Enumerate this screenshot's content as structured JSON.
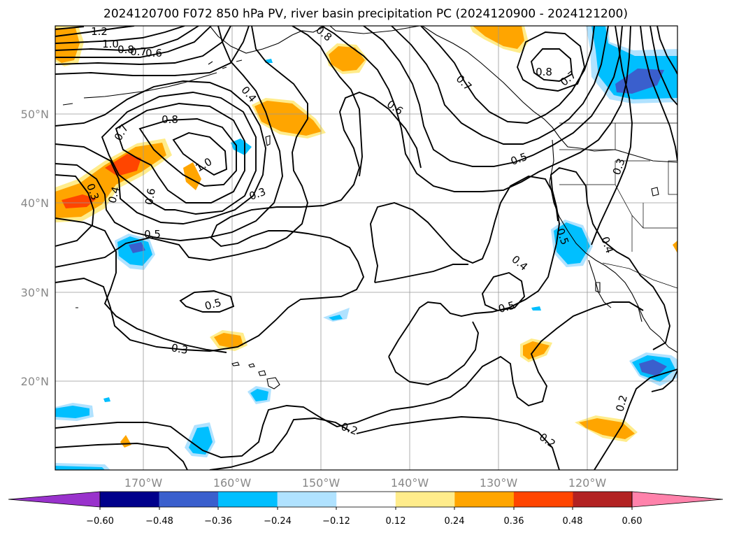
{
  "title": "2024120700 F072 850 hPa PV, river basin precipitation PC (2024120900 - 2024121200)",
  "lat_labels": [
    "50°N",
    "40°N",
    "30°N",
    "20°N"
  ],
  "lon_labels": [
    "170°W",
    "160°W",
    "150°W",
    "140°W",
    "130°W",
    "120°W"
  ],
  "colorbar": {
    "ticks": [
      "−0.60",
      "−0.48",
      "−0.36",
      "−0.24",
      "−0.12",
      "0.12",
      "0.24",
      "0.36",
      "0.48",
      "0.60"
    ],
    "colors": [
      "#9932cc",
      "#00008b",
      "#3a5fcd",
      "#00bfff",
      "#b0e2ff",
      "#ffffff",
      "#ffec8b",
      "#ffa500",
      "#ff4500",
      "#b22222",
      "#ff82ab"
    ]
  },
  "contour_labels": [
    "1.2",
    "1.0",
    "0.8",
    "0.7",
    "0.6",
    "0.8",
    "0.4",
    "0.6",
    "0.7",
    "0.8",
    "0.7",
    "0.8",
    "0.7",
    "1.0",
    "0.6",
    "0.4",
    "0.3",
    "0.3",
    "0.5",
    "0.5",
    "0.3",
    "0.5",
    "0.5",
    "0.4",
    "0.5",
    "0.4",
    "0.3",
    "0.2",
    "0.2",
    "0.2"
  ]
}
